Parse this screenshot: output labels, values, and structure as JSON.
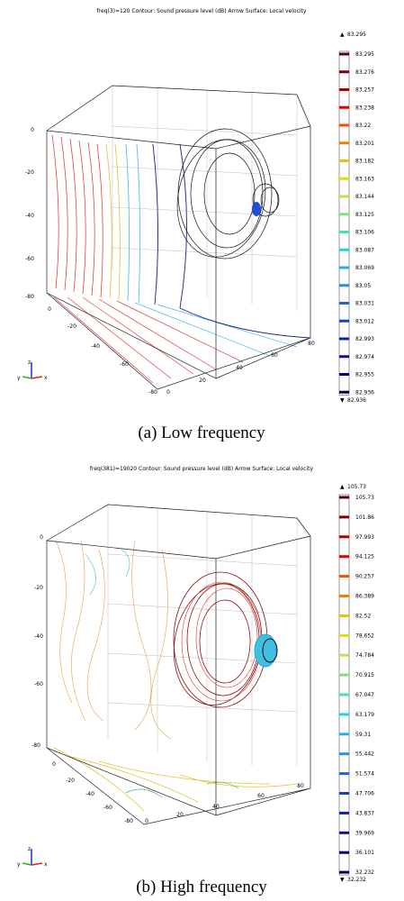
{
  "panels": [
    {
      "title": "freq(3)=120   Contour: Sound pressure level (dB)  Arrow Surface: Local velocity",
      "colorbar_max": 83.295,
      "colorbar_min": 82.936,
      "colorbar_labels": [
        83.295,
        83.276,
        83.257,
        83.238,
        83.22,
        83.201,
        83.182,
        83.163,
        83.144,
        83.125,
        83.106,
        83.087,
        83.069,
        83.05,
        83.031,
        83.012,
        82.993,
        82.974,
        82.955,
        82.936
      ],
      "z_ticks": [
        0,
        -20,
        -40,
        -60,
        -80
      ],
      "y_ticks": [
        0,
        -20,
        -40,
        -60,
        -80
      ],
      "x_ticks": [
        0,
        20,
        40,
        60,
        80
      ],
      "triad": [
        "z",
        "y",
        "x"
      ],
      "caption": "(a) Low frequency"
    },
    {
      "title": "freq(381)=19020   Contour: Sound pressure level (dB)  Arrow Surface: Local velocity",
      "colorbar_max": 105.73,
      "colorbar_min": 32.232,
      "colorbar_labels": [
        105.73,
        101.86,
        97.993,
        94.125,
        90.257,
        86.389,
        82.52,
        78.652,
        74.784,
        70.915,
        67.047,
        63.179,
        59.31,
        55.442,
        51.574,
        47.706,
        43.837,
        39.969,
        36.101,
        32.232
      ],
      "z_ticks": [
        0,
        -20,
        -40,
        -60,
        -80
      ],
      "y_ticks": [
        0,
        -20,
        -40,
        -60,
        -80
      ],
      "x_ticks": [
        0,
        20,
        40,
        60,
        80
      ],
      "triad": [
        "z",
        "y",
        "x"
      ],
      "caption": "(b) High frequency"
    }
  ]
}
